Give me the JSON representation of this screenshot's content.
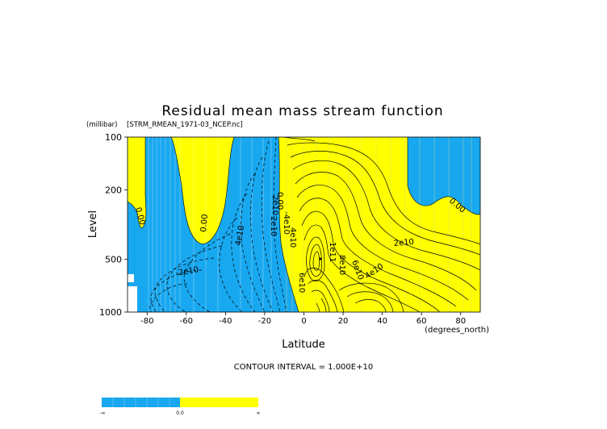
{
  "chart_data": {
    "type": "contour",
    "title": "Residual mean mass stream function",
    "subtitle": "[STRM_RMEAN_1971-03_NCEP.nc]",
    "xlabel": "Latitude",
    "x_units": "(degrees_north)",
    "ylabel": "Level",
    "y_units": "(millibar)",
    "xlim": [
      -90,
      90
    ],
    "ylim": [
      1000,
      100
    ],
    "y_scale": "log",
    "x_ticks": [
      "-80",
      "-60",
      "-40",
      "-20",
      "0",
      "20",
      "40",
      "60",
      "80"
    ],
    "y_ticks": [
      "100",
      "200",
      "500",
      "1000"
    ],
    "contour_interval_label": "CONTOUR INTERVAL = 1.000E+10",
    "contour_labels": [
      "0.00",
      "0.00",
      "0.00",
      "0.00",
      "2e10",
      "-2e10",
      "4e10",
      "-4e10",
      "4e10",
      "6e10",
      "2e10",
      "2e10",
      "4e10",
      "6e10",
      "8e10",
      "1e11"
    ],
    "colorbar": {
      "labels": [
        "-∞",
        "0.0",
        "∞"
      ],
      "colors": {
        "negative": "#18a8f0",
        "positive": "#ffff00"
      }
    },
    "fill_colors": {
      "negative": "#18a8f0",
      "positive": "#ffff00"
    },
    "streamfunction_at_500mb": [
      {
        "lat": -80,
        "value": 2000000000.0
      },
      {
        "lat": -60,
        "value": -10000000000.0
      },
      {
        "lat": -40,
        "value": -25000000000.0
      },
      {
        "lat": -25,
        "value": -40000000000.0
      },
      {
        "lat": -12,
        "value": -50000000000.0
      },
      {
        "lat": -5,
        "value": 30000000000.0
      },
      {
        "lat": 5,
        "value": 105000000000.0
      },
      {
        "lat": 20,
        "value": 70000000000.0
      },
      {
        "lat": 40,
        "value": 40000000000.0
      },
      {
        "lat": 60,
        "value": 20000000000.0
      },
      {
        "lat": 80,
        "value": 5000000000.0
      }
    ]
  }
}
